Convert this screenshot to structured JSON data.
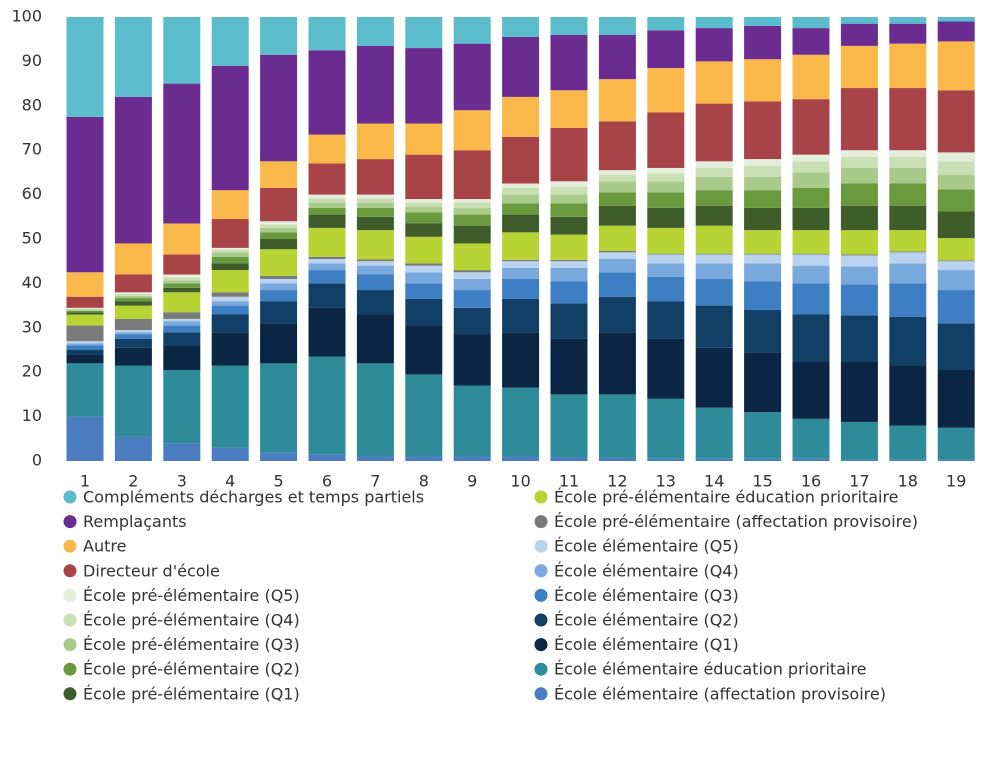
{
  "chart_data": {
    "type": "stacked_bar",
    "categories": [
      "1",
      "2",
      "3",
      "4",
      "5",
      "6",
      "7",
      "8",
      "9",
      "10",
      "11",
      "12",
      "13",
      "14",
      "15",
      "16",
      "17",
      "18",
      "19"
    ],
    "ylim": [
      0,
      100
    ],
    "yticks": [
      0,
      10,
      20,
      30,
      40,
      50,
      60,
      70,
      80,
      90,
      100
    ],
    "series": [
      {
        "name": "Compléments décharges et temps partiels",
        "color": "#5bbccc",
        "values": [
          22.5,
          18,
          15,
          11,
          8.5,
          7.5,
          6.5,
          7,
          6,
          4.5,
          4,
          4,
          3,
          2.5,
          2,
          2.5,
          1.5,
          1.5,
          1
        ]
      },
      {
        "name": "Remplaçants",
        "color": "#6a2c91",
        "values": [
          35,
          33,
          31.5,
          28,
          24,
          19,
          17.5,
          17,
          15,
          13.5,
          12.5,
          10,
          8.5,
          7.5,
          7.5,
          6,
          5,
          4.5,
          4.5
        ]
      },
      {
        "name": "Autre",
        "color": "#fbb84a",
        "values": [
          5.5,
          7,
          7,
          6.5,
          6,
          6.5,
          8,
          7,
          9,
          9,
          8.5,
          9.5,
          10,
          9.5,
          9.5,
          10,
          9.5,
          10,
          11
        ]
      },
      {
        "name": "Directeur d'école",
        "color": "#a84448",
        "values": [
          2.5,
          4,
          4.5,
          6.5,
          7.5,
          7,
          8,
          10,
          11,
          10.5,
          12,
          11,
          12.5,
          13,
          13,
          12.5,
          14,
          14,
          14
        ]
      },
      {
        "name": "École pré-élémentaire (Q5)",
        "color": "#e3eedb",
        "values": [
          0.2,
          0.4,
          0.6,
          0.4,
          0.7,
          0.8,
          0.8,
          0.8,
          0.8,
          1,
          1.2,
          1,
          1.2,
          1.5,
          1.5,
          1.5,
          1.5,
          1.5,
          2
        ]
      },
      {
        "name": "École pré-élémentaire (Q4)",
        "color": "#c9dfb4",
        "values": [
          0.2,
          0.4,
          0.7,
          0.6,
          0.8,
          1,
          1,
          1,
          1.2,
          1.5,
          1.8,
          1.5,
          1.8,
          2,
          2.5,
          2.5,
          2.5,
          2.5,
          3
        ]
      },
      {
        "name": "École pré-élémentaire (Q3)",
        "color": "#a8cb8c",
        "values": [
          0.3,
          0.5,
          0.7,
          1,
          1,
          1.2,
          1.2,
          1.2,
          1.5,
          2,
          2,
          2.5,
          2.5,
          3,
          3,
          3.5,
          3.5,
          3.5,
          3.3
        ]
      },
      {
        "name": "École pré-élémentaire (Q2)",
        "color": "#6a9a3e",
        "values": [
          0.3,
          0.7,
          1,
          1.5,
          1.5,
          1.5,
          2,
          2.5,
          2.5,
          2.5,
          3,
          3,
          3.5,
          3.5,
          4,
          4.5,
          5,
          5,
          5
        ]
      },
      {
        "name": "École pré-élémentaire (Q1)",
        "color": "#3e5d2a",
        "values": [
          0.5,
          1,
          1,
          1.5,
          2.3,
          3,
          3,
          3,
          4,
          4,
          4,
          4.5,
          4.5,
          4.5,
          5,
          5,
          5.5,
          5.5,
          6
        ]
      },
      {
        "name": "École pré-élémentaire éducation prioritaire",
        "color": "#b7d334",
        "values": [
          2.5,
          3,
          4.5,
          5,
          6,
          6.5,
          6.6,
          6,
          6,
          6.2,
          5.7,
          5.7,
          5.8,
          6.3,
          5.3,
          5.3,
          5.5,
          4.8,
          5
        ]
      },
      {
        "name": "École pré-élémentaire (affectation provisoire)",
        "color": "#7a7a7a",
        "values": [
          3.5,
          2.5,
          1.5,
          1,
          0.7,
          0.5,
          0.4,
          0.5,
          0.5,
          0.3,
          0.3,
          0.3,
          0.2,
          0.2,
          0.2,
          0.2,
          0.2,
          0.2,
          0.2
        ]
      },
      {
        "name": "École élémentaire (Q5)",
        "color": "#b9d3ef",
        "values": [
          0.5,
          0.5,
          0.5,
          1,
          1,
          1,
          1,
          1.5,
          1.5,
          1.5,
          1.5,
          1.5,
          2,
          2,
          2,
          2.5,
          2.5,
          2.5,
          2
        ]
      },
      {
        "name": "École élémentaire (Q4)",
        "color": "#79a9dc",
        "values": [
          0.5,
          0.5,
          1,
          1,
          1.5,
          1.5,
          2,
          2.5,
          2.5,
          2.5,
          3,
          3,
          3,
          3.5,
          4,
          4,
          4,
          4.5,
          4.5
        ]
      },
      {
        "name": "École élémentaire (Q3)",
        "color": "#3e7fc4",
        "values": [
          1,
          1,
          1.5,
          2,
          2.5,
          3,
          3.5,
          3.5,
          4,
          4.5,
          5,
          5.5,
          5.5,
          6,
          6.5,
          7,
          7,
          7.5,
          7.5
        ]
      },
      {
        "name": "École élémentaire (Q2)",
        "color": "#123f66",
        "values": [
          1,
          2,
          3,
          4,
          5,
          5.5,
          5.5,
          6,
          6,
          7.5,
          8,
          8,
          8.5,
          9.5,
          9.5,
          10.5,
          10.5,
          11,
          10.5
        ]
      },
      {
        "name": "École élémentaire (Q1)",
        "color": "#0b2545",
        "values": [
          2,
          4,
          5.5,
          7.5,
          9,
          11,
          11,
          11,
          11.5,
          12.5,
          12.5,
          14,
          13.5,
          13.5,
          13.5,
          13,
          13.5,
          13.5,
          13
        ]
      },
      {
        "name": "École élémentaire éducation prioritaire",
        "color": "#2e8b9a",
        "values": [
          12,
          16,
          16.5,
          18.5,
          20,
          22,
          21,
          18.5,
          16,
          15.5,
          14.2,
          14.3,
          13.5,
          11.5,
          10.5,
          9,
          8.5,
          7.7,
          7.2
        ]
      },
      {
        "name": "École élémentaire (affectation provisoire)",
        "color": "#4a7cc0",
        "values": [
          10,
          5.5,
          4,
          3,
          2,
          1.5,
          1,
          1,
          1,
          1,
          0.8,
          0.7,
          0.5,
          0.5,
          0.5,
          0.5,
          0.3,
          0.3,
          0.3
        ]
      }
    ]
  }
}
